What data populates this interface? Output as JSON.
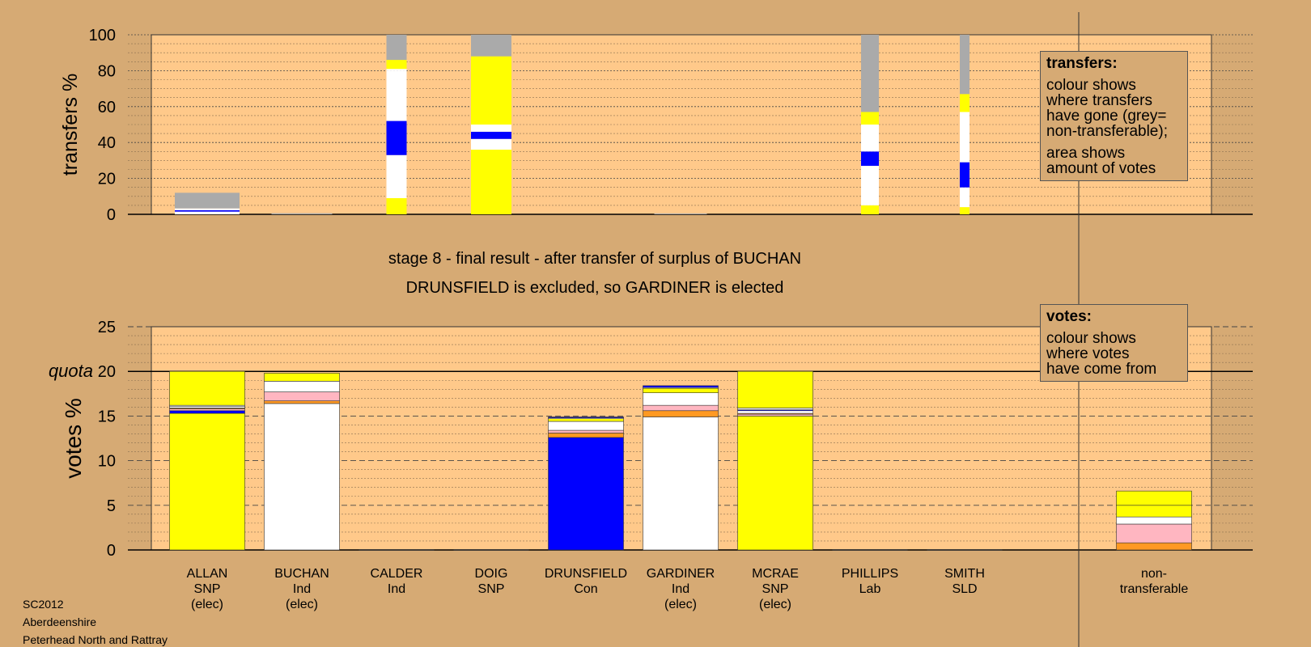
{
  "stage": {
    "line1": "stage 8 - final result - after transfer of surplus of BUCHAN",
    "line2": "DRUNSFIELD is excluded, so GARDINER is elected"
  },
  "footer": {
    "code": "SC2012",
    "council": "Aberdeenshire",
    "ward": "Peterhead North and Rattray"
  },
  "legend_transfers": {
    "title": "transfers:",
    "lines_a": [
      "colour shows",
      "where transfers",
      "have gone (grey=",
      "non-transferable);"
    ],
    "lines_b": [
      "area shows",
      "amount of votes"
    ]
  },
  "legend_votes": {
    "title": "votes:",
    "lines": [
      "colour shows",
      "where votes",
      "have come from"
    ]
  },
  "colors": {
    "background": "#d6aa74",
    "plot": "#ffc98a",
    "SNP": "#ffff00",
    "Ind": "#ffffff",
    "Con": "#0000ff",
    "Lab": "#ffb6c1",
    "SLD": "#ff9922",
    "nontransferable": "#aaaaaa"
  },
  "chart_data": [
    {
      "type": "bar",
      "ylabel": "transfers %",
      "ylim": [
        0,
        100
      ],
      "yticks": [
        0,
        20,
        40,
        60,
        80,
        100
      ],
      "grid": true,
      "note": "stacked transfer percentages by candidate; bar width shows amount of votes",
      "bars": [
        {
          "candidate": "ALLAN",
          "relwidth": 0.8,
          "segments": [
            {
              "party": "Ind",
              "from": 0,
              "to": 1.5
            },
            {
              "party": "Con",
              "from": 1.5,
              "to": 2.3
            },
            {
              "party": "Ind",
              "from": 2.3,
              "to": 3.3
            },
            {
              "party": "nontransferable",
              "from": 3.3,
              "to": 12
            }
          ]
        },
        {
          "candidate": "BUCHAN",
          "relwidth": 0.75,
          "segments": [
            {
              "party": "nontransferable",
              "from": 0,
              "to": 0.6
            }
          ]
        },
        {
          "candidate": "CALDER",
          "relwidth": 0.25,
          "segments": [
            {
              "party": "SNP",
              "from": 0,
              "to": 9
            },
            {
              "party": "Ind",
              "from": 9,
              "to": 33
            },
            {
              "party": "Con",
              "from": 33,
              "to": 52
            },
            {
              "party": "Ind",
              "from": 52,
              "to": 80
            },
            {
              "party": "Ind",
              "from": 80,
              "to": 81
            },
            {
              "party": "SNP",
              "from": 81,
              "to": 86
            },
            {
              "party": "nontransferable",
              "from": 86,
              "to": 100
            }
          ]
        },
        {
          "candidate": "DOIG",
          "relwidth": 0.5,
          "segments": [
            {
              "party": "SNP",
              "from": 0,
              "to": 36
            },
            {
              "party": "Ind",
              "from": 36,
              "to": 42
            },
            {
              "party": "Con",
              "from": 42,
              "to": 46
            },
            {
              "party": "Ind",
              "from": 46,
              "to": 50
            },
            {
              "party": "SNP",
              "from": 50,
              "to": 88
            },
            {
              "party": "nontransferable",
              "from": 88,
              "to": 100
            }
          ]
        },
        {
          "candidate": "GARDINER",
          "relwidth": 0.65,
          "segments": [
            {
              "party": "nontransferable",
              "from": 0,
              "to": 0.5
            }
          ]
        },
        {
          "candidate": "PHILLIPS",
          "relwidth": 0.22,
          "segments": [
            {
              "party": "SNP",
              "from": 0,
              "to": 5
            },
            {
              "party": "Ind",
              "from": 5,
              "to": 27
            },
            {
              "party": "Con",
              "from": 27,
              "to": 35
            },
            {
              "party": "Ind",
              "from": 35,
              "to": 50
            },
            {
              "party": "SNP",
              "from": 50,
              "to": 57
            },
            {
              "party": "nontransferable",
              "from": 57,
              "to": 100
            }
          ]
        },
        {
          "candidate": "SMITH",
          "relwidth": 0.12,
          "segments": [
            {
              "party": "SNP",
              "from": 0,
              "to": 4
            },
            {
              "party": "Ind",
              "from": 4,
              "to": 15
            },
            {
              "party": "Con",
              "from": 15,
              "to": 29
            },
            {
              "party": "Ind",
              "from": 29,
              "to": 57
            },
            {
              "party": "SNP",
              "from": 57,
              "to": 67
            },
            {
              "party": "nontransferable",
              "from": 67,
              "to": 100
            }
          ]
        }
      ]
    },
    {
      "type": "bar",
      "ylabel": "votes %",
      "ylim": [
        0,
        25
      ],
      "yticks": [
        0,
        5,
        10,
        15,
        20,
        25
      ],
      "quota": 20,
      "quota_label": "quota",
      "grid": true,
      "categories": [
        "ALLAN",
        "BUCHAN",
        "CALDER",
        "DOIG",
        "DRUNSFIELD",
        "GARDINER",
        "MCRAE",
        "PHILLIPS",
        "SMITH",
        "non-transferable"
      ],
      "category_labels": [
        [
          "ALLAN",
          "SNP",
          "(elec)"
        ],
        [
          "BUCHAN",
          "Ind",
          "(elec)"
        ],
        [
          "CALDER",
          "Ind"
        ],
        [
          "DOIG",
          "SNP"
        ],
        [
          "DRUNSFIELD",
          "Con"
        ],
        [
          "GARDINER",
          "Ind",
          "(elec)"
        ],
        [
          "MCRAE",
          "SNP",
          "(elec)"
        ],
        [
          "PHILLIPS",
          "Lab"
        ],
        [
          "SMITH",
          "SLD"
        ],
        [
          "non-",
          "transferable"
        ]
      ],
      "stacks": [
        [
          [
            "SNP",
            15.3
          ],
          [
            "Con",
            0.3
          ],
          [
            "Lab",
            0.2
          ],
          [
            "SLD",
            0.1
          ],
          [
            "Ind",
            0.2
          ],
          [
            "Ind",
            0.1
          ],
          [
            "SNP",
            3.8
          ]
        ],
        [
          [
            "Ind",
            16.4
          ],
          [
            "SLD",
            0.3
          ],
          [
            "Lab",
            1.0
          ],
          [
            "Ind",
            1.2
          ],
          [
            "SNP",
            0.9
          ]
        ],
        [],
        [],
        [
          [
            "Con",
            12.6
          ],
          [
            "SLD",
            0.5
          ],
          [
            "Lab",
            0.3
          ],
          [
            "Ind",
            1.0
          ],
          [
            "SNP",
            0.3
          ],
          [
            "Ind",
            0.1
          ],
          [
            "Con",
            0.1
          ]
        ],
        [
          [
            "Ind",
            14.9
          ],
          [
            "SLD",
            0.7
          ],
          [
            "Lab",
            0.6
          ],
          [
            "Ind",
            1.4
          ],
          [
            "SNP",
            0.5
          ],
          [
            "Ind",
            0.1
          ],
          [
            "Con",
            0.2
          ]
        ],
        [
          [
            "SNP",
            15.0
          ],
          [
            "Lab",
            0.2
          ],
          [
            "SLD",
            0.1
          ],
          [
            "Ind",
            0.3
          ],
          [
            "Con",
            0.1
          ],
          [
            "Ind",
            0.2
          ],
          [
            "SNP",
            4.1
          ]
        ],
        [],
        [],
        [
          [
            "SLD",
            0.8
          ],
          [
            "Lab",
            2.1
          ],
          [
            "Ind",
            0.8
          ],
          [
            "SNP",
            1.3
          ],
          [
            "SNP",
            1.6
          ]
        ]
      ]
    }
  ]
}
